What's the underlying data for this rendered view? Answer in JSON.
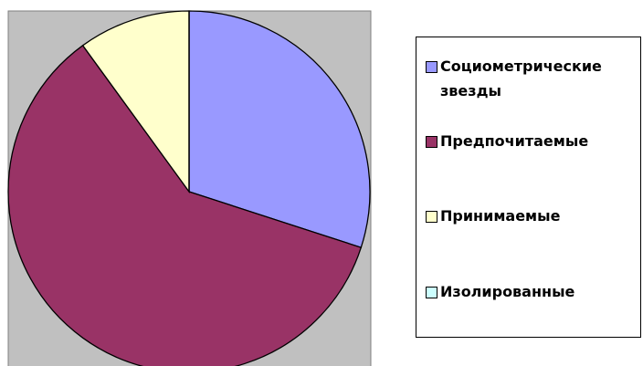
{
  "chart_data": {
    "type": "pie",
    "categories": [
      "Социометрические звезды",
      "Предпочитаемые",
      "Принимаемые",
      "Изолированные"
    ],
    "values": [
      30,
      60,
      10,
      0
    ],
    "colors": [
      "#9999ff",
      "#993366",
      "#ffffcc",
      "#ccffff"
    ]
  }
}
